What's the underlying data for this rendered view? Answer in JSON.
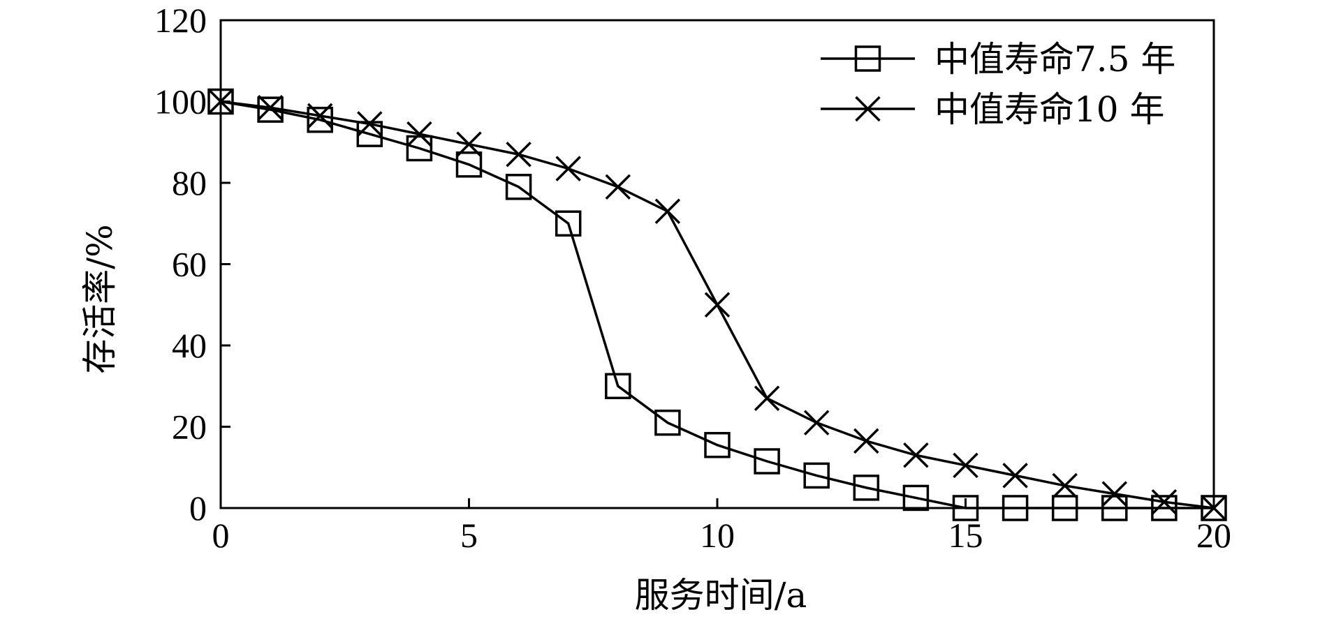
{
  "chart_data": {
    "type": "line",
    "title": "",
    "xlabel": "服务时间/a",
    "ylabel": "存活率/%",
    "xlim": [
      0,
      20
    ],
    "ylim": [
      0,
      120
    ],
    "xticks": [
      0,
      5,
      10,
      15,
      20
    ],
    "yticks": [
      0,
      20,
      40,
      60,
      80,
      100,
      120
    ],
    "grid": false,
    "legend_position": "top-right",
    "x": [
      0,
      1,
      2,
      3,
      4,
      5,
      6,
      7,
      8,
      9,
      10,
      11,
      12,
      13,
      14,
      15,
      16,
      17,
      18,
      19,
      20
    ],
    "series": [
      {
        "name": "中值寿命7.5 年",
        "marker": "square",
        "values": [
          100,
          98,
          95.5,
          92,
          88.5,
          84.5,
          79,
          70,
          30,
          21,
          15.5,
          11.5,
          8,
          5,
          2.5,
          0,
          0,
          0,
          0,
          0,
          0
        ]
      },
      {
        "name": "中值寿命10 年",
        "marker": "x",
        "values": [
          100,
          98.5,
          96.5,
          94.5,
          92,
          89.5,
          87,
          83.5,
          79,
          73,
          50,
          27,
          21,
          16.5,
          13,
          10.5,
          8,
          5.5,
          3.5,
          1.5,
          0
        ]
      }
    ]
  }
}
